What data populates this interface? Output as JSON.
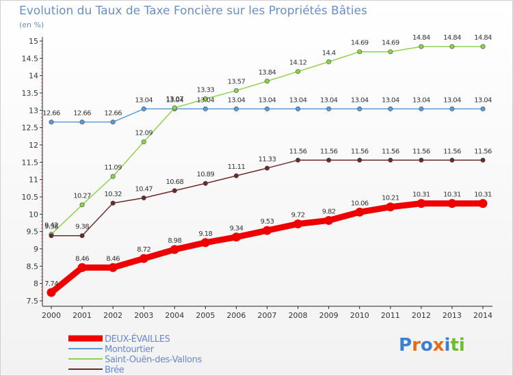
{
  "title": "Evolution du Taux de Taxe Foncière sur les Propriétés Bâties",
  "unit_label": "(en %)",
  "logo": {
    "text": "Proxiti",
    "letters": [
      "P",
      "r",
      "o",
      "x",
      "i",
      "t",
      "i"
    ],
    "colors": [
      "#3a7fd0",
      "#e36b1a",
      "#3a7fd0",
      "#e36b1a",
      "#3a7fd0",
      "#6bbf2a",
      "#6bbf2a"
    ]
  },
  "chart_data": {
    "type": "line",
    "title": "Evolution du Taux de Taxe Foncière sur les Propriétés Bâties",
    "ylabel": "(en %)",
    "xlabel": "",
    "x": [
      2000,
      2001,
      2002,
      2003,
      2004,
      2005,
      2006,
      2007,
      2008,
      2009,
      2010,
      2011,
      2012,
      2013,
      2014
    ],
    "ylim": [
      7.5,
      15
    ],
    "yticks": [
      7.5,
      8,
      8.5,
      9,
      9.5,
      10,
      10.5,
      11,
      11.5,
      12,
      12.5,
      13,
      13.5,
      14,
      14.5,
      15
    ],
    "grid": false,
    "legend": "bottom-left",
    "series": [
      {
        "name": "DEUX-ÉVAILLES",
        "color": "#ee0000",
        "width": 9,
        "values": [
          7.74,
          8.46,
          8.46,
          8.72,
          8.98,
          9.18,
          9.34,
          9.53,
          9.72,
          9.82,
          10.06,
          10.21,
          10.31,
          10.31,
          10.31
        ]
      },
      {
        "name": "Montourtier",
        "color": "#5b9bd5",
        "width": 1.5,
        "values": [
          12.66,
          12.66,
          12.66,
          13.04,
          13.04,
          13.04,
          13.04,
          13.04,
          13.04,
          13.04,
          13.04,
          13.04,
          13.04,
          13.04,
          13.04
        ]
      },
      {
        "name": "Saint-Ouën-des-Vallons",
        "color": "#8fd14f",
        "width": 1.5,
        "values": [
          9.42,
          10.27,
          11.09,
          12.09,
          13.07,
          13.33,
          13.57,
          13.84,
          14.12,
          14.4,
          14.69,
          14.69,
          14.84,
          14.84,
          14.84
        ]
      },
      {
        "name": "Brée",
        "color": "#6b2a2a",
        "width": 1.5,
        "values": [
          9.38,
          9.38,
          10.32,
          10.47,
          10.68,
          10.89,
          11.11,
          11.33,
          11.56,
          11.56,
          11.56,
          11.56,
          11.56,
          11.56,
          11.56
        ]
      }
    ]
  }
}
